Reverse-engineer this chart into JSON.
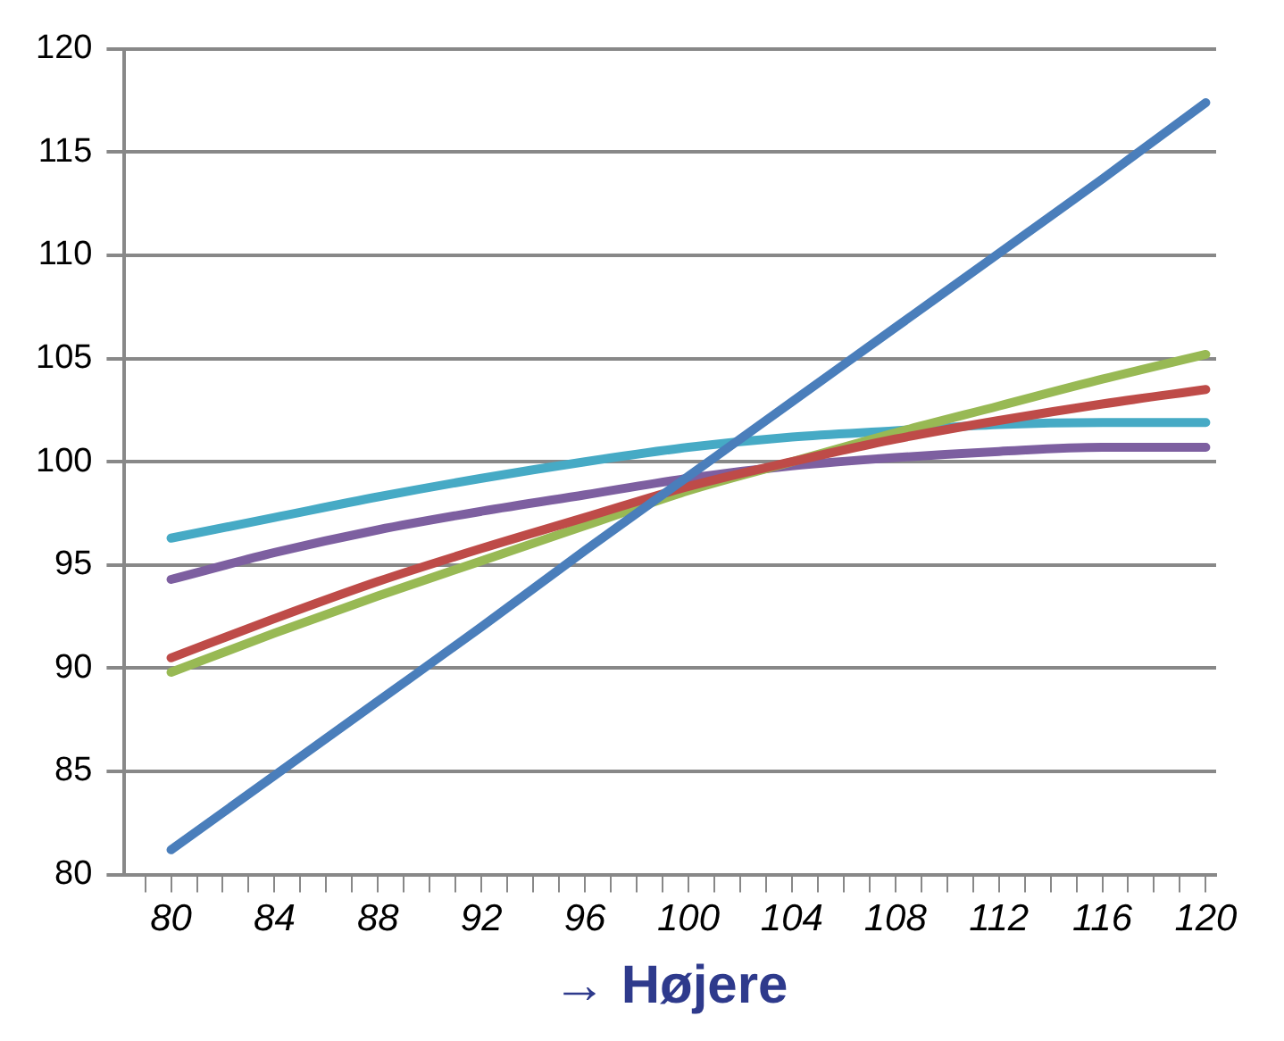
{
  "chart_data": {
    "type": "line",
    "xlabel": "→ Højere",
    "x": [
      80,
      84,
      88,
      92,
      96,
      100,
      104,
      108,
      112,
      116,
      120
    ],
    "series": [
      {
        "color": "#4a7ebb",
        "values": [
          81.2,
          84.8,
          88.4,
          92.0,
          95.7,
          99.3,
          102.9,
          106.5,
          110.1,
          113.7,
          117.4
        ]
      },
      {
        "color": "#be4b48",
        "values": [
          90.5,
          92.4,
          94.2,
          95.8,
          97.3,
          98.8,
          100.0,
          101.1,
          102.0,
          102.8,
          103.5
        ]
      },
      {
        "color": "#98b954",
        "values": [
          89.8,
          91.7,
          93.5,
          95.2,
          96.9,
          98.6,
          100.0,
          101.4,
          102.7,
          104.0,
          105.2
        ]
      },
      {
        "color": "#7d5fa0",
        "values": [
          94.3,
          95.6,
          96.7,
          97.6,
          98.4,
          99.2,
          99.8,
          100.2,
          100.5,
          100.7,
          100.7
        ]
      },
      {
        "color": "#46aac5",
        "values": [
          96.3,
          97.3,
          98.3,
          99.2,
          100.0,
          100.7,
          101.2,
          101.5,
          101.8,
          101.9,
          101.9
        ]
      }
    ],
    "xlim": [
      78.2,
      120.4
    ],
    "xticks": [
      {
        "value": 79,
        "label": null
      },
      80,
      {
        "value": 81,
        "label": null
      },
      {
        "value": 82,
        "label": null
      },
      {
        "value": 83,
        "label": null
      },
      84,
      {
        "value": 85,
        "label": null
      },
      {
        "value": 86,
        "label": null
      },
      {
        "value": 87,
        "label": null
      },
      88,
      {
        "value": 89,
        "label": null
      },
      {
        "value": 90,
        "label": null
      },
      {
        "value": 91,
        "label": null
      },
      92,
      {
        "value": 93,
        "label": null
      },
      {
        "value": 94,
        "label": null
      },
      {
        "value": 95,
        "label": null
      },
      96,
      {
        "value": 97,
        "label": null
      },
      {
        "value": 98,
        "label": null
      },
      {
        "value": 99,
        "label": null
      },
      100,
      {
        "value": 101,
        "label": null
      },
      {
        "value": 102,
        "label": null
      },
      {
        "value": 103,
        "label": null
      },
      104,
      {
        "value": 105,
        "label": null
      },
      {
        "value": 106,
        "label": null
      },
      {
        "value": 107,
        "label": null
      },
      108,
      {
        "value": 109,
        "label": null
      },
      {
        "value": 110,
        "label": null
      },
      {
        "value": 111,
        "label": null
      },
      112,
      {
        "value": 113,
        "label": null
      },
      {
        "value": 114,
        "label": null
      },
      {
        "value": 115,
        "label": null
      },
      116,
      {
        "value": 117,
        "label": null
      },
      {
        "value": 118,
        "label": null
      },
      {
        "value": 119,
        "label": null
      },
      120
    ],
    "ylim": [
      80,
      120
    ],
    "yticks": [
      80,
      85,
      90,
      95,
      100,
      105,
      110,
      115,
      120
    ],
    "grid": "y",
    "legend": false,
    "marker": "none",
    "line_style": "solid"
  }
}
